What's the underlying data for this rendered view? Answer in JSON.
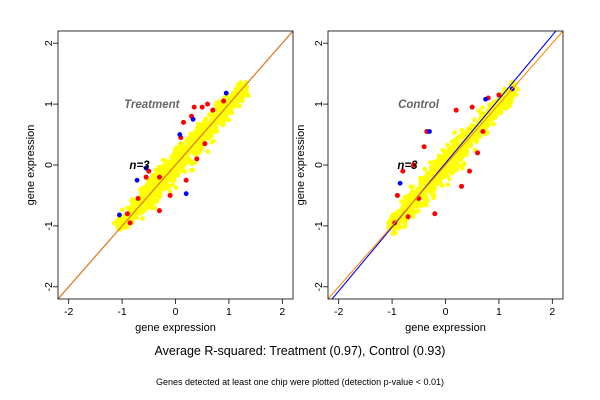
{
  "figure": {
    "caption": "Average R-squared: Treatment (0.97), Control (0.93)",
    "subcaption": "Genes detected at least one chip were plotted (detection p-value < 0.01)"
  },
  "chart_data": [
    {
      "type": "scatter",
      "title": "Treatment",
      "annotation": "n=3",
      "xlabel": "gene expression",
      "ylabel": "gene expression",
      "xlim": [
        -2.2,
        2.2
      ],
      "ylim": [
        -2.2,
        2.2
      ],
      "xticks": [
        -2,
        -1,
        0,
        1,
        2
      ],
      "yticks": [
        -2,
        -1,
        0,
        1,
        2
      ],
      "cloud": {
        "x_range": [
          -1.05,
          1.3
        ],
        "y_range": [
          -1.05,
          1.25
        ],
        "color": "#ffff00"
      },
      "reference_lines": [
        {
          "color": "#0000ff",
          "slope": 1.0,
          "intercept": 0.0
        },
        {
          "color": "#ff8c00",
          "slope": 1.0,
          "intercept": 0.0
        }
      ],
      "highlight_points": {
        "red": [
          [
            -0.5,
            -0.1
          ],
          [
            -0.3,
            -0.2
          ],
          [
            0.3,
            0.8
          ],
          [
            0.5,
            0.95
          ],
          [
            0.7,
            0.9
          ],
          [
            -0.7,
            -0.55
          ],
          [
            0.1,
            0.45
          ],
          [
            -0.1,
            -0.5
          ],
          [
            0.2,
            -0.25
          ],
          [
            -0.85,
            -0.95
          ],
          [
            0.9,
            1.05
          ],
          [
            0.35,
            0.95
          ],
          [
            -0.55,
            -0.2
          ],
          [
            0.55,
            0.35
          ],
          [
            -0.3,
            -0.75
          ],
          [
            0.6,
            1.0
          ],
          [
            -0.9,
            -0.8
          ],
          [
            0.15,
            0.7
          ],
          [
            0.4,
            0.1
          ]
        ],
        "blue": [
          [
            -1.05,
            -0.82
          ],
          [
            0.08,
            0.5
          ],
          [
            -0.55,
            -0.05
          ],
          [
            0.2,
            -0.47
          ],
          [
            0.95,
            1.18
          ],
          [
            -0.72,
            -0.25
          ],
          [
            0.33,
            0.75
          ]
        ]
      }
    },
    {
      "type": "scatter",
      "title": "Control",
      "annotation": "n=3",
      "xlabel": "gene expression",
      "ylabel": "gene expression",
      "xlim": [
        -2.2,
        2.2
      ],
      "ylim": [
        -2.2,
        2.2
      ],
      "xticks": [
        -2,
        -1,
        0,
        1,
        2
      ],
      "yticks": [
        -2,
        -1,
        0,
        1,
        2
      ],
      "cloud": {
        "x_range": [
          -1.0,
          1.3
        ],
        "y_range": [
          -1.0,
          1.25
        ],
        "color": "#ffff00"
      },
      "reference_lines": [
        {
          "color": "#0000ff",
          "slope": 1.05,
          "intercept": 0.03
        },
        {
          "color": "#ff8c00",
          "slope": 1.0,
          "intercept": 0.0
        }
      ],
      "highlight_points": {
        "red": [
          [
            -0.6,
            0.0
          ],
          [
            -0.9,
            -0.5
          ],
          [
            -0.4,
            0.3
          ],
          [
            0.5,
            0.95
          ],
          [
            0.8,
            1.1
          ],
          [
            -0.2,
            -0.8
          ],
          [
            0.3,
            -0.35
          ],
          [
            -0.7,
            -0.85
          ],
          [
            0.6,
            0.2
          ],
          [
            -0.8,
            -0.1
          ],
          [
            0.2,
            0.9
          ],
          [
            1.0,
            1.15
          ],
          [
            -0.35,
            0.55
          ],
          [
            0.45,
            -0.1
          ],
          [
            -0.95,
            -0.95
          ],
          [
            0.7,
            0.55
          ],
          [
            -0.5,
            -0.55
          ]
        ],
        "blue": [
          [
            -0.3,
            0.55
          ],
          [
            1.25,
            1.25
          ],
          [
            0.75,
            1.08
          ],
          [
            -0.85,
            -0.3
          ]
        ]
      }
    }
  ]
}
